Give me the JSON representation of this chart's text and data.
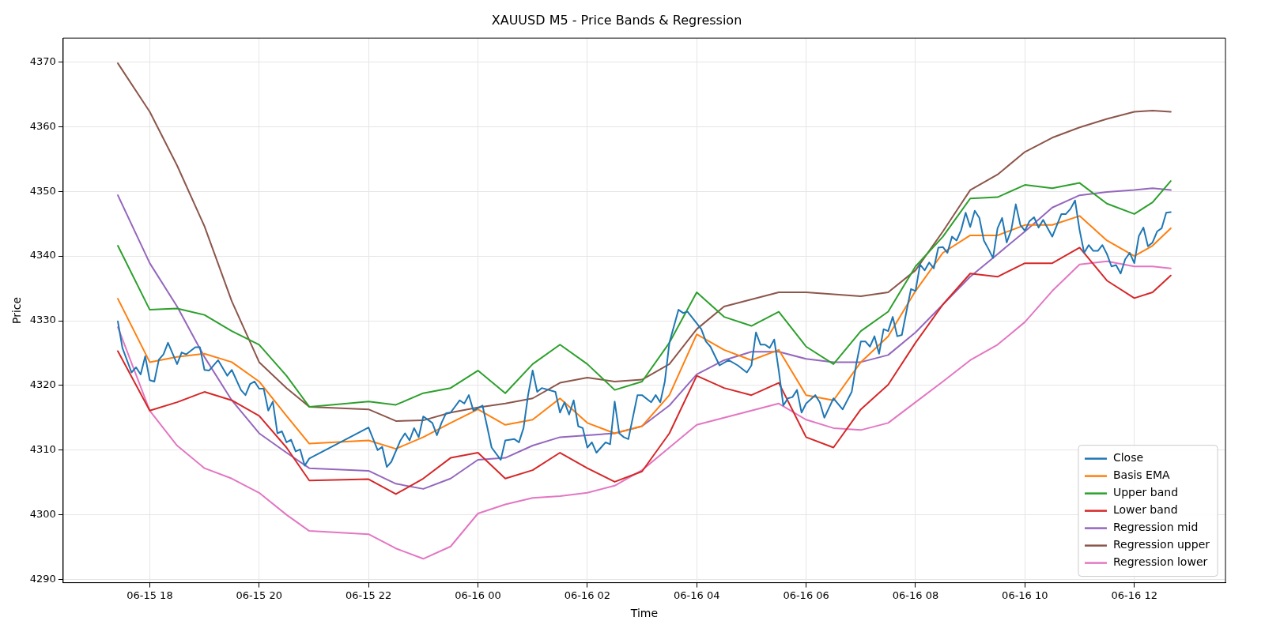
{
  "chart_data": {
    "type": "line",
    "title": "XAUUSD M5 - Price Bands & Regression",
    "xlabel": "Time",
    "ylabel": "Price",
    "x": [
      "--06-15T17:25",
      "--06-15T18:00",
      "--06-15T18:30",
      "--06-15T19:00",
      "--06-15T19:30",
      "--06-15T20:00",
      "--06-15T20:30",
      "--06-15T20:55",
      "--06-15T22:00",
      "--06-15T22:30",
      "--06-15T23:00",
      "--06-15T23:30",
      "--06-16T00:00",
      "--06-16T00:30",
      "--06-16T01:00",
      "--06-16T01:30",
      "--06-16T02:00",
      "--06-16T02:30",
      "--06-16T03:00",
      "--06-16T03:30",
      "--06-16T04:00",
      "--06-16T04:30",
      "--06-16T05:00",
      "--06-16T05:30",
      "--06-16T06:00",
      "--06-16T06:30",
      "--06-16T07:00",
      "--06-16T07:30",
      "--06-16T08:00",
      "--06-16T08:30",
      "--06-16T09:00",
      "--06-16T09:30",
      "--06-16T10:00",
      "--06-16T10:30",
      "--06-16T11:00",
      "--06-16T11:30",
      "--06-16T12:00",
      "--06-16T12:20",
      "--06-16T12:40"
    ],
    "xlim": [
      "--06-15T16:25",
      "--06-16T13:40"
    ],
    "xticks": [
      {
        "value": "--06-15T18:00",
        "label": "06-15 18"
      },
      {
        "value": "--06-15T20:00",
        "label": "06-15 20"
      },
      {
        "value": "--06-15T22:00",
        "label": "06-15 22"
      },
      {
        "value": "--06-16T00:00",
        "label": "06-16 00"
      },
      {
        "value": "--06-16T02:00",
        "label": "06-16 02"
      },
      {
        "value": "--06-16T04:00",
        "label": "06-16 04"
      },
      {
        "value": "--06-16T06:00",
        "label": "06-16 06"
      },
      {
        "value": "--06-16T08:00",
        "label": "06-16 08"
      },
      {
        "value": "--06-16T10:00",
        "label": "06-16 10"
      },
      {
        "value": "--06-16T12:00",
        "label": "06-16 12"
      }
    ],
    "ylim": [
      4289.5,
      4373.7
    ],
    "yticks": [
      4290,
      4300,
      4310,
      4320,
      4330,
      4340,
      4350,
      4360,
      4370
    ],
    "grid": true,
    "legend": "bottom right",
    "series": [
      {
        "name": "Close",
        "color": "#1f77b4",
        "x": [
          "--06-15T17:25",
          "--06-15T17:30",
          "--06-15T17:40",
          "--06-15T17:45",
          "--06-15T17:50",
          "--06-15T17:55",
          "--06-15T18:00",
          "--06-15T18:05",
          "--06-15T18:10",
          "--06-15T18:15",
          "--06-15T18:20",
          "--06-15T18:30",
          "--06-15T18:35",
          "--06-15T18:40",
          "--06-15T18:50",
          "--06-15T18:55",
          "--06-15T19:00",
          "--06-15T19:05",
          "--06-15T19:15",
          "--06-15T19:25",
          "--06-15T19:30",
          "--06-15T19:40",
          "--06-15T19:45",
          "--06-15T19:50",
          "--06-15T19:55",
          "--06-15T20:00",
          "--06-15T20:05",
          "--06-15T20:10",
          "--06-15T20:15",
          "--06-15T20:20",
          "--06-15T20:25",
          "--06-15T20:30",
          "--06-15T20:35",
          "--06-15T20:40",
          "--06-15T20:45",
          "--06-15T20:50",
          "--06-15T20:55",
          "--06-15T22:00",
          "--06-15T22:10",
          "--06-15T22:15",
          "--06-15T22:20",
          "--06-15T22:25",
          "--06-15T22:35",
          "--06-15T22:40",
          "--06-15T22:45",
          "--06-15T22:50",
          "--06-15T22:55",
          "--06-15T23:00",
          "--06-15T23:10",
          "--06-15T23:15",
          "--06-15T23:20",
          "--06-15T23:25",
          "--06-15T23:30",
          "--06-15T23:40",
          "--06-15T23:45",
          "--06-15T23:50",
          "--06-15T23:55",
          "--06-16T00:05",
          "--06-16T00:10",
          "--06-16T00:15",
          "--06-16T00:25",
          "--06-16T00:30",
          "--06-16T00:40",
          "--06-16T00:45",
          "--06-16T00:50",
          "--06-16T00:55",
          "--06-16T01:00",
          "--06-16T01:05",
          "--06-16T01:10",
          "--06-16T01:25",
          "--06-16T01:30",
          "--06-16T01:35",
          "--06-16T01:40",
          "--06-16T01:45",
          "--06-16T01:50",
          "--06-16T01:55",
          "--06-16T02:00",
          "--06-16T02:05",
          "--06-16T02:10",
          "--06-16T02:20",
          "--06-16T02:25",
          "--06-16T02:30",
          "--06-16T02:35",
          "--06-16T02:40",
          "--06-16T02:45",
          "--06-16T02:55",
          "--06-16T03:00",
          "--06-16T03:10",
          "--06-16T03:15",
          "--06-16T03:20",
          "--06-16T03:25",
          "--06-16T03:30",
          "--06-16T03:40",
          "--06-16T03:45",
          "--06-16T03:50",
          "--06-16T04:05",
          "--06-16T04:10",
          "--06-16T04:15",
          "--06-16T04:25",
          "--06-16T04:35",
          "--06-16T04:45",
          "--06-16T04:55",
          "--06-16T05:00",
          "--06-16T05:05",
          "--06-16T05:10",
          "--06-16T05:15",
          "--06-16T05:20",
          "--06-16T05:25",
          "--06-16T05:30",
          "--06-16T05:35",
          "--06-16T05:40",
          "--06-16T05:45",
          "--06-16T05:50",
          "--06-16T05:55",
          "--06-16T06:00",
          "--06-16T06:10",
          "--06-16T06:15",
          "--06-16T06:20",
          "--06-16T06:30",
          "--06-16T06:40",
          "--06-16T06:50",
          "--06-16T06:55",
          "--06-16T07:00",
          "--06-16T07:05",
          "--06-16T07:10",
          "--06-16T07:15",
          "--06-16T07:20",
          "--06-16T07:25",
          "--06-16T07:30",
          "--06-16T07:35",
          "--06-16T07:40",
          "--06-16T07:45",
          "--06-16T07:50",
          "--06-16T07:55",
          "--06-16T08:00",
          "--06-16T08:05",
          "--06-16T08:10",
          "--06-16T08:15",
          "--06-16T08:20",
          "--06-16T08:25",
          "--06-16T08:30",
          "--06-16T08:35",
          "--06-16T08:40",
          "--06-16T08:45",
          "--06-16T08:50",
          "--06-16T08:55",
          "--06-16T09:00",
          "--06-16T09:05",
          "--06-16T09:10",
          "--06-16T09:15",
          "--06-16T09:20",
          "--06-16T09:25",
          "--06-16T09:30",
          "--06-16T09:35",
          "--06-16T09:40",
          "--06-16T09:45",
          "--06-16T09:50",
          "--06-16T09:55",
          "--06-16T10:00",
          "--06-16T10:05",
          "--06-16T10:10",
          "--06-16T10:15",
          "--06-16T10:20",
          "--06-16T10:25",
          "--06-16T10:30",
          "--06-16T10:40",
          "--06-16T10:45",
          "--06-16T10:50",
          "--06-16T10:55",
          "--06-16T11:00",
          "--06-16T11:05",
          "--06-16T11:10",
          "--06-16T11:15",
          "--06-16T11:20",
          "--06-16T11:25",
          "--06-16T11:30",
          "--06-16T11:35",
          "--06-16T11:40",
          "--06-16T11:45",
          "--06-16T11:50",
          "--06-16T11:55",
          "--06-16T12:00",
          "--06-16T12:05",
          "--06-16T12:10",
          "--06-16T12:15",
          "--06-16T12:20",
          "--06-16T12:25",
          "--06-16T12:30",
          "--06-16T12:35",
          "--06-16T12:40"
        ],
        "values": [
          4329.9,
          4325.8,
          4322,
          4322.8,
          4321.7,
          4324.5,
          4320.8,
          4320.6,
          4324,
          4324.8,
          4326.6,
          4323.3,
          4325.1,
          4324.8,
          4325.9,
          4325.9,
          4322.4,
          4322.3,
          4323.9,
          4321.5,
          4322.4,
          4319.3,
          4318.5,
          4320.2,
          4320.6,
          4319.5,
          4319.5,
          4316.1,
          4317.5,
          4312.6,
          4312.9,
          4311.2,
          4311.6,
          4309.8,
          4310.1,
          4307.6,
          4308.7,
          4313.5,
          4310,
          4310.5,
          4307.4,
          4308.2,
          4311.5,
          4312.6,
          4311.5,
          4313.4,
          4312,
          4315.2,
          4314.2,
          4312.3,
          4314.2,
          4315.7,
          4315.8,
          4317.7,
          4317.2,
          4318.5,
          4316.1,
          4316.9,
          4313.7,
          4310.4,
          4308.5,
          4311.5,
          4311.7,
          4311.2,
          4313.4,
          4318.5,
          4322.3,
          4319,
          4319.6,
          4319,
          4315.8,
          4317.4,
          4315.5,
          4317.7,
          4313.7,
          4313.4,
          4310.4,
          4311.2,
          4309.6,
          4311.2,
          4310.9,
          4317.5,
          4312.6,
          4312,
          4311.7,
          4318.5,
          4318.5,
          4317.4,
          4318.5,
          4317.4,
          4320.6,
          4326.6,
          4331.7,
          4331.2,
          4331.4,
          4328.7,
          4326.8,
          4326,
          4323.1,
          4323.9,
          4323.1,
          4322,
          4323.1,
          4328.2,
          4326.3,
          4326.3,
          4325.8,
          4327.1,
          4322.3,
          4316.9,
          4318,
          4318.2,
          4319.3,
          4315.8,
          4317.2,
          4318.5,
          4317.4,
          4315,
          4318,
          4316.3,
          4319,
          4323.3,
          4326.8,
          4326.8,
          4326,
          4327.6,
          4324.9,
          4328.7,
          4328.4,
          4330.6,
          4327.6,
          4327.8,
          4331.4,
          4334.9,
          4334.6,
          4338.7,
          4337.8,
          4339,
          4338.1,
          4341.3,
          4341.4,
          4340.5,
          4343,
          4342.4,
          4344,
          4346.7,
          4344.5,
          4347,
          4345.9,
          4342.4,
          4341.1,
          4339.7,
          4344.3,
          4345.9,
          4342.1,
          4344,
          4348,
          4344.8,
          4343.9,
          4345.4,
          4346,
          4344.4,
          4345.6,
          4344.3,
          4343,
          4346.5,
          4346.5,
          4347.3,
          4348.6,
          4344,
          4340.5,
          4341.7,
          4340.8,
          4340.8,
          4341.7,
          4340.3,
          4338.4,
          4338.6,
          4337.3,
          4339.5,
          4340.5,
          4338.9,
          4343.1,
          4344.4,
          4341.5,
          4342.1,
          4343.8,
          4344.3,
          4346.7,
          4346.8
        ]
      },
      {
        "name": "Basis EMA",
        "color": "#ff7f0e",
        "values": [
          4333.4,
          4323.6,
          4324.4,
          4324.9,
          4323.6,
          4320.6,
          4315.3,
          4311,
          4311.5,
          4310.2,
          4312,
          4314.2,
          4316.3,
          4313.9,
          4314.7,
          4318,
          4314.2,
          4312.6,
          4313.7,
          4318.5,
          4327.9,
          4325.5,
          4323.9,
          4325.5,
          4318.5,
          4317.7,
          4323.6,
          4327.6,
          4334.6,
          4340.5,
          4343.2,
          4343.2,
          4344.8,
          4344.8,
          4346.2,
          4342.4,
          4340,
          4341.6,
          4344.3
        ]
      },
      {
        "name": "Upper band",
        "color": "#2ca02c",
        "values": [
          4341.6,
          4331.7,
          4331.9,
          4330.9,
          4328.4,
          4326.3,
          4321.5,
          4316.7,
          4317.5,
          4317,
          4318.8,
          4319.6,
          4322.3,
          4318.8,
          4323.3,
          4326.3,
          4323.3,
          4319.3,
          4320.6,
          4326.6,
          4334.4,
          4330.6,
          4329.2,
          4331.4,
          4326,
          4323.3,
          4328.4,
          4331.4,
          4338.4,
          4343,
          4348.9,
          4349.1,
          4351,
          4350.5,
          4351.3,
          4348.1,
          4346.5,
          4348.3,
          4351.6
        ]
      },
      {
        "name": "Lower band",
        "color": "#d62728",
        "values": [
          4325.3,
          4316.1,
          4317.4,
          4319,
          4317.7,
          4315.3,
          4310.4,
          4305.3,
          4305.5,
          4303.2,
          4305.6,
          4308.8,
          4309.6,
          4305.6,
          4306.9,
          4309.6,
          4307.2,
          4305.1,
          4306.7,
          4312.6,
          4321.5,
          4319.6,
          4318.5,
          4320.4,
          4312,
          4310.4,
          4316.3,
          4320.1,
          4326.6,
          4332.5,
          4337.3,
          4336.8,
          4338.9,
          4338.9,
          4341.3,
          4336.2,
          4333.5,
          4334.4,
          4337
        ]
      },
      {
        "name": "Regression mid",
        "color": "#9467bd",
        "values": [
          4349.4,
          4338.9,
          4332.2,
          4324.4,
          4317.7,
          4312.6,
          4309.6,
          4307.2,
          4306.8,
          4304.8,
          4304,
          4305.6,
          4308.5,
          4308.8,
          4310.7,
          4312,
          4312.3,
          4312.6,
          4313.7,
          4316.9,
          4321.7,
          4323.9,
          4325.2,
          4325.2,
          4324.1,
          4323.6,
          4323.6,
          4324.7,
          4328.2,
          4332.5,
          4336.8,
          4340.3,
          4343.8,
          4347.5,
          4349.4,
          4349.9,
          4350.2,
          4350.5,
          4350.2
        ]
      },
      {
        "name": "Regression upper",
        "color": "#8c564b",
        "values": [
          4369.8,
          4362.3,
          4354,
          4344.6,
          4333,
          4323.6,
          4319.6,
          4316.7,
          4316.3,
          4314.5,
          4314.6,
          4315.8,
          4316.6,
          4317.2,
          4318,
          4320.4,
          4321.2,
          4320.6,
          4320.9,
          4323.3,
          4328.7,
          4332.2,
          4333.3,
          4334.4,
          4334.4,
          4334.1,
          4333.8,
          4334.4,
          4337.8,
          4343.8,
          4350.2,
          4352.6,
          4356.1,
          4358.3,
          4359.9,
          4361.2,
          4362.3,
          4362.5,
          4362.3
        ]
      },
      {
        "name": "Regression lower",
        "color": "#e377c2",
        "values": [
          4329,
          4316.1,
          4310.7,
          4307.2,
          4305.6,
          4303.4,
          4300,
          4297.5,
          4297,
          4294.8,
          4293.2,
          4295.1,
          4300.2,
          4301.6,
          4302.6,
          4302.9,
          4303.4,
          4304.5,
          4306.9,
          4310.4,
          4313.9,
          4315,
          4316.1,
          4317.2,
          4314.7,
          4313.4,
          4313.1,
          4314.2,
          4317.4,
          4320.6,
          4323.9,
          4326.3,
          4329.8,
          4334.6,
          4338.7,
          4339.2,
          4338.4,
          4338.4,
          4338.1
        ]
      }
    ]
  }
}
